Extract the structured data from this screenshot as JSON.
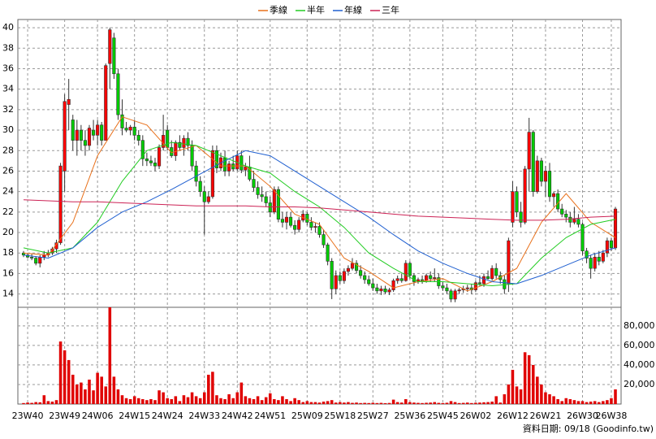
{
  "chart_data": {
    "type": "candlestick",
    "categories": [
      null,
      "23W40",
      null,
      null,
      null,
      null,
      null,
      null,
      null,
      null,
      "23W49",
      null,
      null,
      null,
      null,
      null,
      null,
      null,
      "24W06",
      null,
      null,
      null,
      null,
      null,
      null,
      null,
      null,
      "24W15",
      null,
      null,
      null,
      null,
      null,
      null,
      null,
      "24W24",
      null,
      null,
      null,
      null,
      null,
      null,
      null,
      null,
      "24W33",
      null,
      null,
      null,
      null,
      null,
      null,
      null,
      "24W42",
      null,
      null,
      null,
      null,
      null,
      null,
      null,
      "24W51",
      null,
      null,
      null,
      null,
      null,
      null,
      null,
      null,
      "25W09",
      null,
      null,
      null,
      null,
      null,
      null,
      null,
      "25W18",
      null,
      null,
      null,
      null,
      null,
      null,
      null,
      "25W27",
      null,
      null,
      null,
      null,
      null,
      null,
      null,
      null,
      "25W36",
      null,
      null,
      null,
      null,
      null,
      null,
      null,
      "25W45",
      null,
      null,
      null,
      null,
      null,
      null,
      null,
      "26W02",
      null,
      null,
      null,
      null,
      null,
      null,
      null,
      null,
      "26W12",
      null,
      null,
      null,
      null,
      null,
      null,
      null,
      "26W21",
      null,
      null,
      null,
      null,
      null,
      null,
      null,
      null,
      "26W30",
      null,
      null,
      null,
      null,
      null,
      null,
      "26W38",
      null
    ],
    "open": [
      18,
      17.8,
      17.6,
      17.5,
      17.0,
      17.6,
      17.8,
      18.0,
      18.4,
      19.0,
      26,
      32.5,
      31,
      29,
      30,
      29,
      28.5,
      30,
      29.5,
      30.5,
      29,
      36.5,
      39,
      35.5,
      31.5,
      30.2,
      30,
      30.3,
      29.5,
      29,
      27.2,
      27,
      26.8,
      26.5,
      28.3,
      30,
      28.3,
      27.5,
      28.8,
      28.3,
      29.2,
      28.5,
      26.5,
      25,
      24,
      23,
      23.5,
      28,
      26.3,
      27.3,
      26,
      26.7,
      26.2,
      27.5,
      26.1,
      26.4,
      25.2,
      24.4,
      23.7,
      23.5,
      22.9,
      22,
      24.2,
      21.3,
      21,
      21.5,
      20.7,
      20.3,
      21.2,
      21.8,
      21,
      20.5,
      20.6,
      19.8,
      18.8,
      17.2,
      14.5,
      15.8,
      15.3,
      16.2,
      16.5,
      17,
      16.3,
      15.8,
      15.4,
      15,
      14.6,
      14.3,
      14.5,
      14.2,
      14.4,
      15.3,
      15.5,
      15.3,
      17,
      15.8,
      15.2,
      15.4,
      15.3,
      15.8,
      15.5,
      15.6,
      14.8,
      14.6,
      14.3,
      13.5,
      14.3,
      14.4,
      14.5,
      14.6,
      14.4,
      15.1,
      15,
      15.7,
      15.5,
      16.5,
      15.8,
      15.4,
      15,
      21,
      24,
      22,
      21,
      26.2,
      29.8,
      24,
      27,
      25,
      26,
      23.5,
      23.8,
      22.3,
      21.8,
      21.5,
      21,
      21.3,
      20.8,
      18.2,
      17.5,
      16.5,
      17.6,
      17.2,
      18,
      19.2,
      18.5
    ],
    "high": [
      18.2,
      18,
      17.9,
      17.7,
      17.8,
      18.2,
      18.3,
      18.6,
      19.3,
      26.8,
      33.5,
      35,
      31.5,
      31,
      30.5,
      30,
      30.5,
      31,
      31,
      30.8,
      36.5,
      40,
      39.5,
      36,
      33,
      30.8,
      30.5,
      31,
      30,
      29.5,
      27.8,
      27.5,
      27.3,
      28.6,
      31.5,
      30.5,
      29,
      29,
      29.5,
      29.5,
      29.8,
      29,
      27,
      25.5,
      24.5,
      24,
      28.5,
      28.5,
      27.8,
      28,
      27,
      27.5,
      28,
      28,
      26.8,
      27.5,
      26,
      25,
      24.5,
      24,
      23.5,
      24.5,
      24.5,
      22,
      22,
      22,
      21.2,
      21.5,
      22.2,
      22,
      21.5,
      21,
      21,
      20.3,
      19,
      17.5,
      16.3,
      16.2,
      16.5,
      16.8,
      17.5,
      17.3,
      16.8,
      16.2,
      15.8,
      15.5,
      15,
      14.8,
      14.8,
      14.6,
      15.5,
      15.8,
      16,
      17.3,
      17.2,
      16,
      15.6,
      15.8,
      16,
      16.2,
      16.5,
      16,
      15.2,
      15,
      14.5,
      14.5,
      14.6,
      14.8,
      14.9,
      15,
      15.3,
      15.8,
      16,
      16.3,
      16.8,
      17,
      16.2,
      15.8,
      19.5,
      25,
      24.5,
      23,
      26.5,
      31.2,
      30,
      27.5,
      27.3,
      26.5,
      26.8,
      24,
      24.2,
      22.8,
      22.2,
      22,
      22.5,
      21.8,
      21,
      18.5,
      17.8,
      18,
      18.2,
      18.3,
      19.5,
      19.5,
      22.5
    ],
    "low": [
      17.6,
      17.5,
      17.3,
      16.8,
      16.6,
      17.3,
      17.6,
      17.8,
      18.0,
      18.8,
      24,
      30,
      28,
      27.5,
      28,
      27.5,
      28,
      29,
      28.5,
      28.5,
      29,
      34,
      35,
      31,
      29.5,
      29.8,
      29.5,
      29,
      28.5,
      26.5,
      26.5,
      26.5,
      26,
      26.2,
      28,
      28,
      27.3,
      27,
      28,
      27.5,
      28,
      26,
      24.5,
      23.5,
      19.8,
      22.8,
      23.3,
      25.8,
      26,
      25.5,
      25.5,
      26,
      26,
      25.8,
      25.5,
      25,
      24,
      23.3,
      23,
      22.5,
      21.5,
      21.8,
      21,
      20.5,
      20.3,
      20.5,
      19.8,
      20,
      21,
      20.7,
      20.2,
      20,
      19.5,
      18.5,
      16.8,
      13.5,
      14,
      15,
      15,
      15.8,
      16.3,
      16,
      15.5,
      15,
      14.8,
      14.3,
      14,
      13.9,
      14,
      13.9,
      14.2,
      15,
      15.1,
      15.2,
      15.5,
      14.8,
      15,
      15,
      15.1,
      15.2,
      15.2,
      14.5,
      14.3,
      14,
      13.2,
      13.2,
      14,
      14.1,
      14.2,
      14,
      14.2,
      14.8,
      14.7,
      15.4,
      15.3,
      15.5,
      15,
      14,
      14.2,
      20.5,
      21.5,
      20.5,
      20.8,
      24,
      23.5,
      23.8,
      24.5,
      23.5,
      23,
      22.5,
      22,
      21.5,
      21,
      20.5,
      20.8,
      20.5,
      17.8,
      17,
      15.5,
      16.2,
      16.8,
      17,
      17.6,
      18.2,
      18.3
    ],
    "close": [
      17.8,
      17.6,
      17.5,
      17.0,
      17.6,
      17.8,
      18.0,
      18.4,
      19.0,
      26.5,
      32.8,
      33,
      29,
      30,
      29,
      28.5,
      30.2,
      29.5,
      30.5,
      29,
      36.3,
      39.8,
      35.5,
      31.5,
      30.2,
      30,
      30.3,
      29.5,
      29,
      27.2,
      27,
      26.8,
      26.5,
      28.3,
      29.5,
      28.3,
      27.5,
      28.8,
      28.3,
      29.2,
      28.5,
      26.5,
      25,
      24,
      23,
      23.5,
      28,
      26.3,
      27.3,
      26,
      26.7,
      26.2,
      27.5,
      26.1,
      26.4,
      25.2,
      24.4,
      23.7,
      23.5,
      22.9,
      22,
      24.2,
      21.3,
      21,
      21.5,
      20.7,
      20.3,
      21.2,
      21.8,
      21,
      20.5,
      20.6,
      19.8,
      18.8,
      17.2,
      14.5,
      15.8,
      15.3,
      16.2,
      16.5,
      17,
      16.3,
      15.8,
      15.4,
      15,
      14.6,
      14.3,
      14.5,
      14.2,
      14.4,
      15.3,
      15.5,
      15.3,
      17,
      15.8,
      15.2,
      15.4,
      15.3,
      15.8,
      15.5,
      15.6,
      14.8,
      14.6,
      14.3,
      13.5,
      14.3,
      14.4,
      14.5,
      14.6,
      14.4,
      15.1,
      15,
      15.7,
      15.5,
      16.5,
      15.8,
      15.4,
      14.5,
      19.2,
      24,
      22,
      21,
      26.2,
      29.8,
      24,
      27,
      25,
      26,
      23.5,
      23.8,
      22.3,
      21.8,
      21.5,
      21,
      21.3,
      20.8,
      18.2,
      17.5,
      16.5,
      17.6,
      17.2,
      18,
      19.2,
      18.5,
      22.3
    ],
    "up_color": "#ff0000",
    "down_color": "#00cc00",
    "ylim": [
      12.7,
      40.8
    ],
    "yticks": [
      14,
      16,
      18,
      20,
      22,
      24,
      26,
      28,
      30,
      32,
      34,
      36,
      38,
      40
    ],
    "grid": true,
    "lines": [
      {
        "name": "季線",
        "color": "#e8701a",
        "x": [
          0,
          6,
          12,
          18,
          24,
          30,
          36,
          42,
          48,
          54,
          60,
          66,
          72,
          78,
          84,
          90,
          96,
          102,
          108,
          114,
          120,
          126,
          132,
          138,
          144
        ],
        "values": [
          18,
          17.8,
          21,
          27.5,
          31.3,
          30.5,
          27.8,
          28.5,
          26.5,
          26.5,
          24.5,
          21.8,
          20.8,
          17.5,
          16.2,
          14.6,
          15.2,
          15.5,
          14.3,
          15.2,
          16.5,
          21,
          23.8,
          21,
          19.5
        ]
      },
      {
        "name": "半年",
        "color": "#22cc22",
        "x": [
          0,
          6,
          12,
          18,
          24,
          30,
          36,
          42,
          48,
          54,
          60,
          66,
          72,
          78,
          84,
          90,
          96,
          102,
          108,
          114,
          120,
          126,
          132,
          138,
          144
        ],
        "values": [
          18.5,
          18,
          18.5,
          21,
          25,
          28,
          28.8,
          28.5,
          27.5,
          26.5,
          25.8,
          24,
          22.5,
          20.5,
          18,
          16.5,
          15.2,
          15.2,
          15,
          14.8,
          15,
          17.5,
          19.5,
          20.8,
          21.3
        ]
      },
      {
        "name": "年線",
        "color": "#1f5fd0",
        "x": [
          0,
          6,
          12,
          18,
          24,
          30,
          36,
          42,
          48,
          54,
          60,
          66,
          72,
          78,
          84,
          90,
          96,
          102,
          108,
          114,
          120,
          126,
          132,
          138,
          144
        ],
        "values": [
          17.8,
          17.5,
          18.5,
          20.5,
          22,
          23,
          24.2,
          25.5,
          26.8,
          28,
          27.5,
          26,
          24.5,
          23,
          21.5,
          19.8,
          18.2,
          17,
          16,
          15.2,
          15,
          15.8,
          16.8,
          17.8,
          18.5
        ]
      },
      {
        "name": "三年",
        "color": "#cc2255",
        "x": [
          0,
          6,
          12,
          18,
          24,
          30,
          36,
          42,
          48,
          54,
          60,
          66,
          72,
          78,
          84,
          90,
          96,
          102,
          108,
          114,
          120,
          126,
          132,
          138,
          144
        ],
        "values": [
          23.2,
          23.1,
          23,
          23,
          22.9,
          22.8,
          22.7,
          22.6,
          22.6,
          22.6,
          22.5,
          22.5,
          22.4,
          22.2,
          22,
          21.8,
          21.6,
          21.5,
          21.4,
          21.3,
          21.2,
          21.2,
          21.3,
          21.5,
          21.6
        ]
      }
    ],
    "volume": {
      "color": "#e00000",
      "values": [
        1000,
        1500,
        1200,
        2000,
        1800,
        9000,
        3000,
        2500,
        4000,
        64000,
        55000,
        45000,
        30000,
        20000,
        22000,
        15000,
        25000,
        14000,
        32000,
        28000,
        18000,
        99000,
        28000,
        15000,
        9000,
        6000,
        5000,
        8000,
        6000,
        5000,
        4000,
        5000,
        4000,
        14000,
        12000,
        6000,
        5000,
        8000,
        3000,
        9000,
        7000,
        12000,
        8000,
        6000,
        12000,
        30000,
        33000,
        9000,
        6000,
        5000,
        10000,
        6000,
        12000,
        22000,
        8000,
        6000,
        5000,
        8000,
        4000,
        7000,
        11000,
        5000,
        4000,
        8000,
        5000,
        3000,
        6000,
        4000,
        2000,
        3000,
        2000,
        2000,
        1500,
        2500,
        3000,
        4000,
        1500,
        2000,
        1500,
        2000,
        1200,
        1500,
        1000,
        1200,
        1000,
        1300,
        1000,
        1200,
        900,
        1100,
        4500,
        2000,
        1500,
        5000,
        2000,
        1500,
        1200,
        1000,
        1300,
        1500,
        2000,
        1200,
        1000,
        1300,
        3000,
        2000,
        1000,
        1200,
        1500,
        1000,
        1300,
        1500,
        1800,
        2000,
        2500,
        8000,
        1500,
        10000,
        20000,
        35000,
        18000,
        15000,
        53000,
        50000,
        40000,
        28000,
        20000,
        12000,
        10000,
        8000,
        5000,
        3000,
        6000,
        5000,
        4000,
        3000,
        3000,
        2000,
        2500,
        3000,
        2000,
        3000,
        4000,
        6000,
        15000
      ],
      "ylim": [
        0,
        99000
      ],
      "yticks": [
        {
          "value": 20000,
          "label": "20,000"
        },
        {
          "value": 40000,
          "label": "40,000"
        },
        {
          "value": 60000,
          "label": "60,000"
        },
        {
          "value": 80000,
          "label": "80,000"
        }
      ]
    },
    "source": "資料日期: 09/18 (Goodinfo.tw)"
  }
}
